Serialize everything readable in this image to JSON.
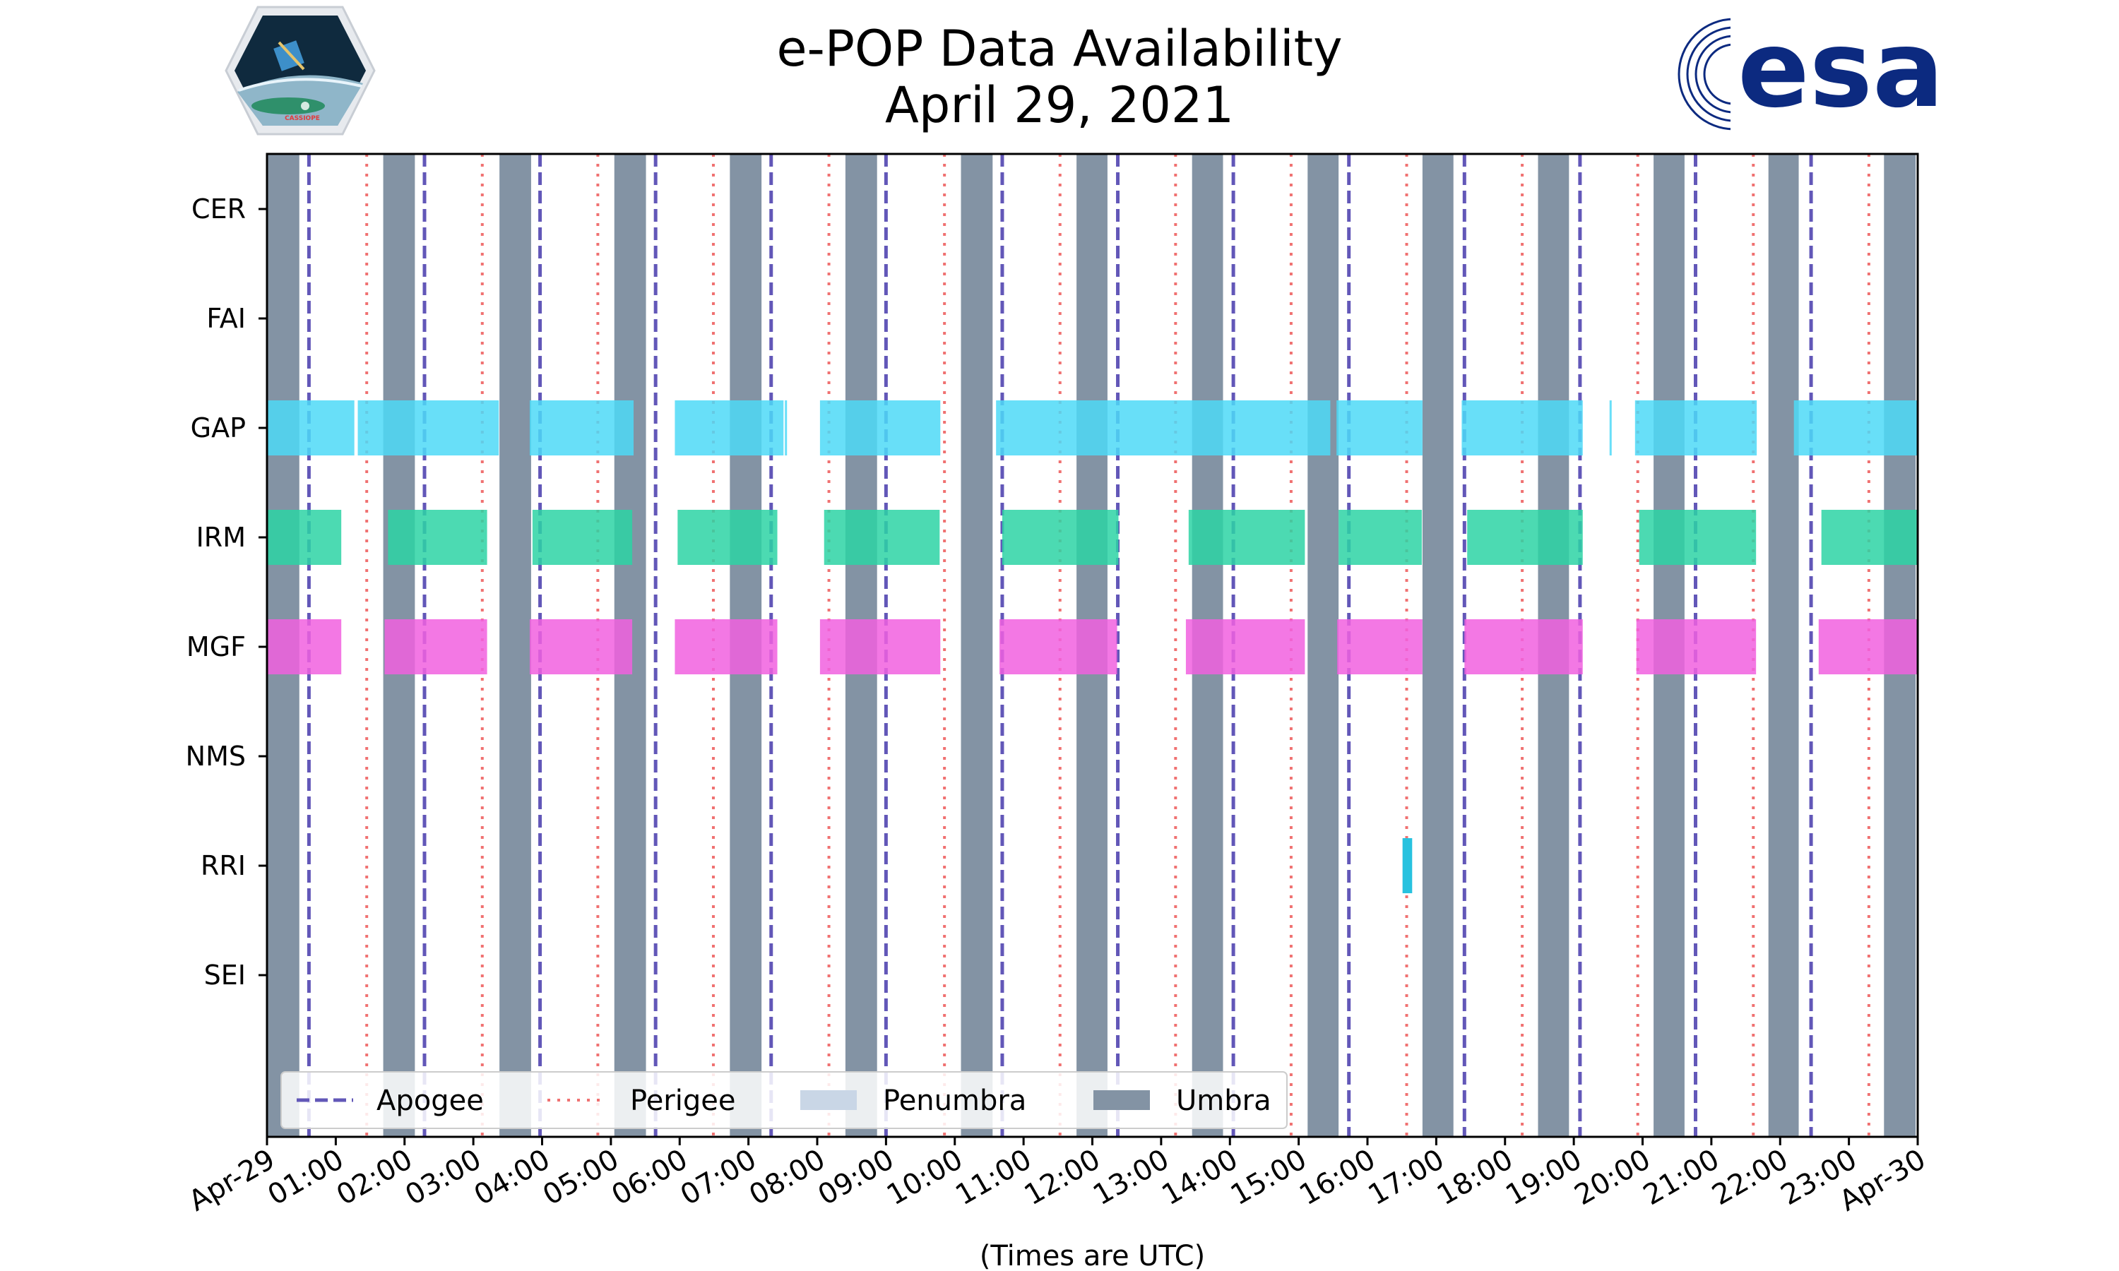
{
  "title": {
    "line1": "e-POP Data Availability",
    "line2": "April 29, 2021"
  },
  "logos": {
    "mission": {
      "name": "cassiope-mission-logo",
      "text": "CASSIOPE"
    },
    "agency": {
      "name": "esa-logo",
      "text": "esa"
    }
  },
  "colors": {
    "umbra": "#8393a4",
    "penumbra": "#c9d6e6",
    "apogee": "#6257b8",
    "perigee": "#f07171",
    "gap": "#4dd9f7",
    "irm": "#2dd3a4",
    "mgf": "#f160df",
    "rri": "#28c2df"
  },
  "chart_data": {
    "type": "timeline",
    "title": "e-POP Data Availability April 29, 2021",
    "xlabel": "(Times are UTC)",
    "xlim_hours": [
      0,
      24
    ],
    "x_tick_labels": [
      "Apr-29",
      "01:00",
      "02:00",
      "03:00",
      "04:00",
      "05:00",
      "06:00",
      "07:00",
      "08:00",
      "09:00",
      "10:00",
      "11:00",
      "12:00",
      "13:00",
      "14:00",
      "15:00",
      "16:00",
      "17:00",
      "18:00",
      "19:00",
      "20:00",
      "21:00",
      "22:00",
      "23:00",
      "Apr-30"
    ],
    "instruments": [
      "CER",
      "FAI",
      "GAP",
      "IRM",
      "MGF",
      "NMS",
      "RRI",
      "SEI"
    ],
    "legend": {
      "placement": "bottom",
      "entries": [
        "Apogee",
        "Perigee",
        "Penumbra",
        "Umbra"
      ]
    },
    "umbra_hours": [
      [
        0.0,
        0.47
      ],
      [
        1.69,
        2.15
      ],
      [
        3.38,
        3.84
      ],
      [
        5.05,
        5.51
      ],
      [
        6.73,
        7.19
      ],
      [
        8.41,
        8.87
      ],
      [
        10.09,
        10.55
      ],
      [
        11.77,
        12.22
      ],
      [
        13.45,
        13.9
      ],
      [
        15.13,
        15.58
      ],
      [
        16.8,
        17.25
      ],
      [
        18.48,
        18.93
      ],
      [
        20.16,
        20.61
      ],
      [
        21.83,
        22.27
      ],
      [
        23.51,
        23.97
      ]
    ],
    "apogee_hours": [
      0.61,
      2.29,
      3.97,
      5.65,
      7.33,
      9.0,
      10.69,
      12.37,
      14.05,
      15.73,
      17.41,
      19.09,
      20.77,
      22.45
    ],
    "perigee_hours": [
      1.45,
      3.13,
      4.81,
      6.49,
      8.17,
      9.85,
      11.53,
      13.21,
      14.89,
      16.57,
      18.25,
      19.93,
      21.61,
      23.29
    ],
    "series": [
      {
        "name": "GAP",
        "intervals": [
          [
            0.0,
            1.27
          ],
          [
            1.32,
            3.37
          ],
          [
            3.82,
            5.33
          ],
          [
            5.93,
            7.51
          ],
          [
            7.53,
            7.55
          ],
          [
            8.04,
            9.79
          ],
          [
            10.6,
            15.46
          ],
          [
            15.55,
            16.8
          ],
          [
            17.37,
            19.13
          ],
          [
            19.52,
            19.54
          ],
          [
            19.89,
            21.66
          ],
          [
            22.2,
            24.0
          ]
        ]
      },
      {
        "name": "IRM",
        "intervals": [
          [
            0.0,
            1.08
          ],
          [
            1.76,
            3.2
          ],
          [
            3.86,
            5.31
          ],
          [
            5.97,
            7.42
          ],
          [
            8.1,
            9.78
          ],
          [
            10.69,
            12.38
          ],
          [
            13.4,
            15.09
          ],
          [
            15.58,
            16.79
          ],
          [
            17.45,
            19.13
          ],
          [
            19.95,
            21.65
          ],
          [
            22.6,
            24.0
          ]
        ]
      },
      {
        "name": "MGF",
        "intervals": [
          [
            0.0,
            1.08
          ],
          [
            1.71,
            3.2
          ],
          [
            3.82,
            5.31
          ],
          [
            5.93,
            7.42
          ],
          [
            8.04,
            9.79
          ],
          [
            10.65,
            12.36
          ],
          [
            13.36,
            15.09
          ],
          [
            15.56,
            16.8
          ],
          [
            17.41,
            19.13
          ],
          [
            19.91,
            21.65
          ],
          [
            22.56,
            24.0
          ]
        ]
      },
      {
        "name": "RRI",
        "intervals": [
          [
            16.51,
            16.65
          ]
        ]
      }
    ]
  }
}
